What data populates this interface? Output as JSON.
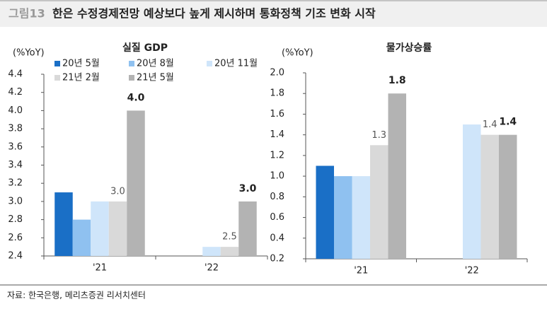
{
  "figure_label": "그림13",
  "title": "한은 수정경제전망 예상보다 높게 제시하며 통화정책 기조 변화 시작",
  "source": "자료: 한국은행, 메리츠증권 리서치센터",
  "chart_data": [
    {
      "type": "bar",
      "title": "실질 GDP",
      "y_label": "(%YoY)",
      "categories": [
        "'21",
        "'22"
      ],
      "ylim": [
        2.4,
        4.4
      ],
      "yticks": [
        2.4,
        2.6,
        2.8,
        {
          "value": 3,
          "label": "3.0"
        },
        3.2,
        3.4,
        3.6,
        3.8,
        {
          "value": 4,
          "label": "4.0"
        },
        4.2,
        4.4
      ],
      "legend": true,
      "series": [
        {
          "name": "20년 5월",
          "color": "#1a6fc6",
          "values": [
            3.1,
            null
          ]
        },
        {
          "name": "20년 8월",
          "color": "#8fc1f0",
          "values": [
            2.8,
            null
          ]
        },
        {
          "name": "20년 11월",
          "color": "#cfe5fa",
          "values": [
            3.0,
            2.5
          ]
        },
        {
          "name": "21년 2월",
          "color": "#d9d9d9",
          "values": [
            3.0,
            2.5
          ],
          "value_labels": [
            "3.0",
            "2.5"
          ]
        },
        {
          "name": "21년 5월",
          "color": "#b3b3b3",
          "values": [
            4.0,
            3.0
          ],
          "value_labels": [
            "4.0",
            "3.0"
          ]
        }
      ]
    },
    {
      "type": "bar",
      "title": "물가상승률",
      "y_label": "(%YoY)",
      "categories": [
        "'21",
        "'22"
      ],
      "ylim": [
        0.2,
        2.0
      ],
      "yticks": [
        0.2,
        0.4,
        0.6,
        0.8,
        {
          "value": 1,
          "label": "1.0"
        },
        1.2,
        1.4,
        1.6,
        1.8,
        {
          "value": 2,
          "label": "2.0"
        }
      ],
      "legend": false,
      "series": [
        {
          "name": "20년 5월",
          "color": "#1a6fc6",
          "values": [
            1.1,
            null
          ]
        },
        {
          "name": "20년 8월",
          "color": "#8fc1f0",
          "values": [
            1.0,
            null
          ]
        },
        {
          "name": "20년 11월",
          "color": "#cfe5fa",
          "values": [
            1.0,
            1.5
          ]
        },
        {
          "name": "21년 2월",
          "color": "#d9d9d9",
          "values": [
            1.3,
            1.4
          ],
          "value_labels": [
            "1.3",
            "1.4"
          ]
        },
        {
          "name": "21년 5월",
          "color": "#b3b3b3",
          "values": [
            1.8,
            1.4
          ],
          "value_labels": [
            "1.8",
            "1.4"
          ]
        }
      ]
    }
  ]
}
